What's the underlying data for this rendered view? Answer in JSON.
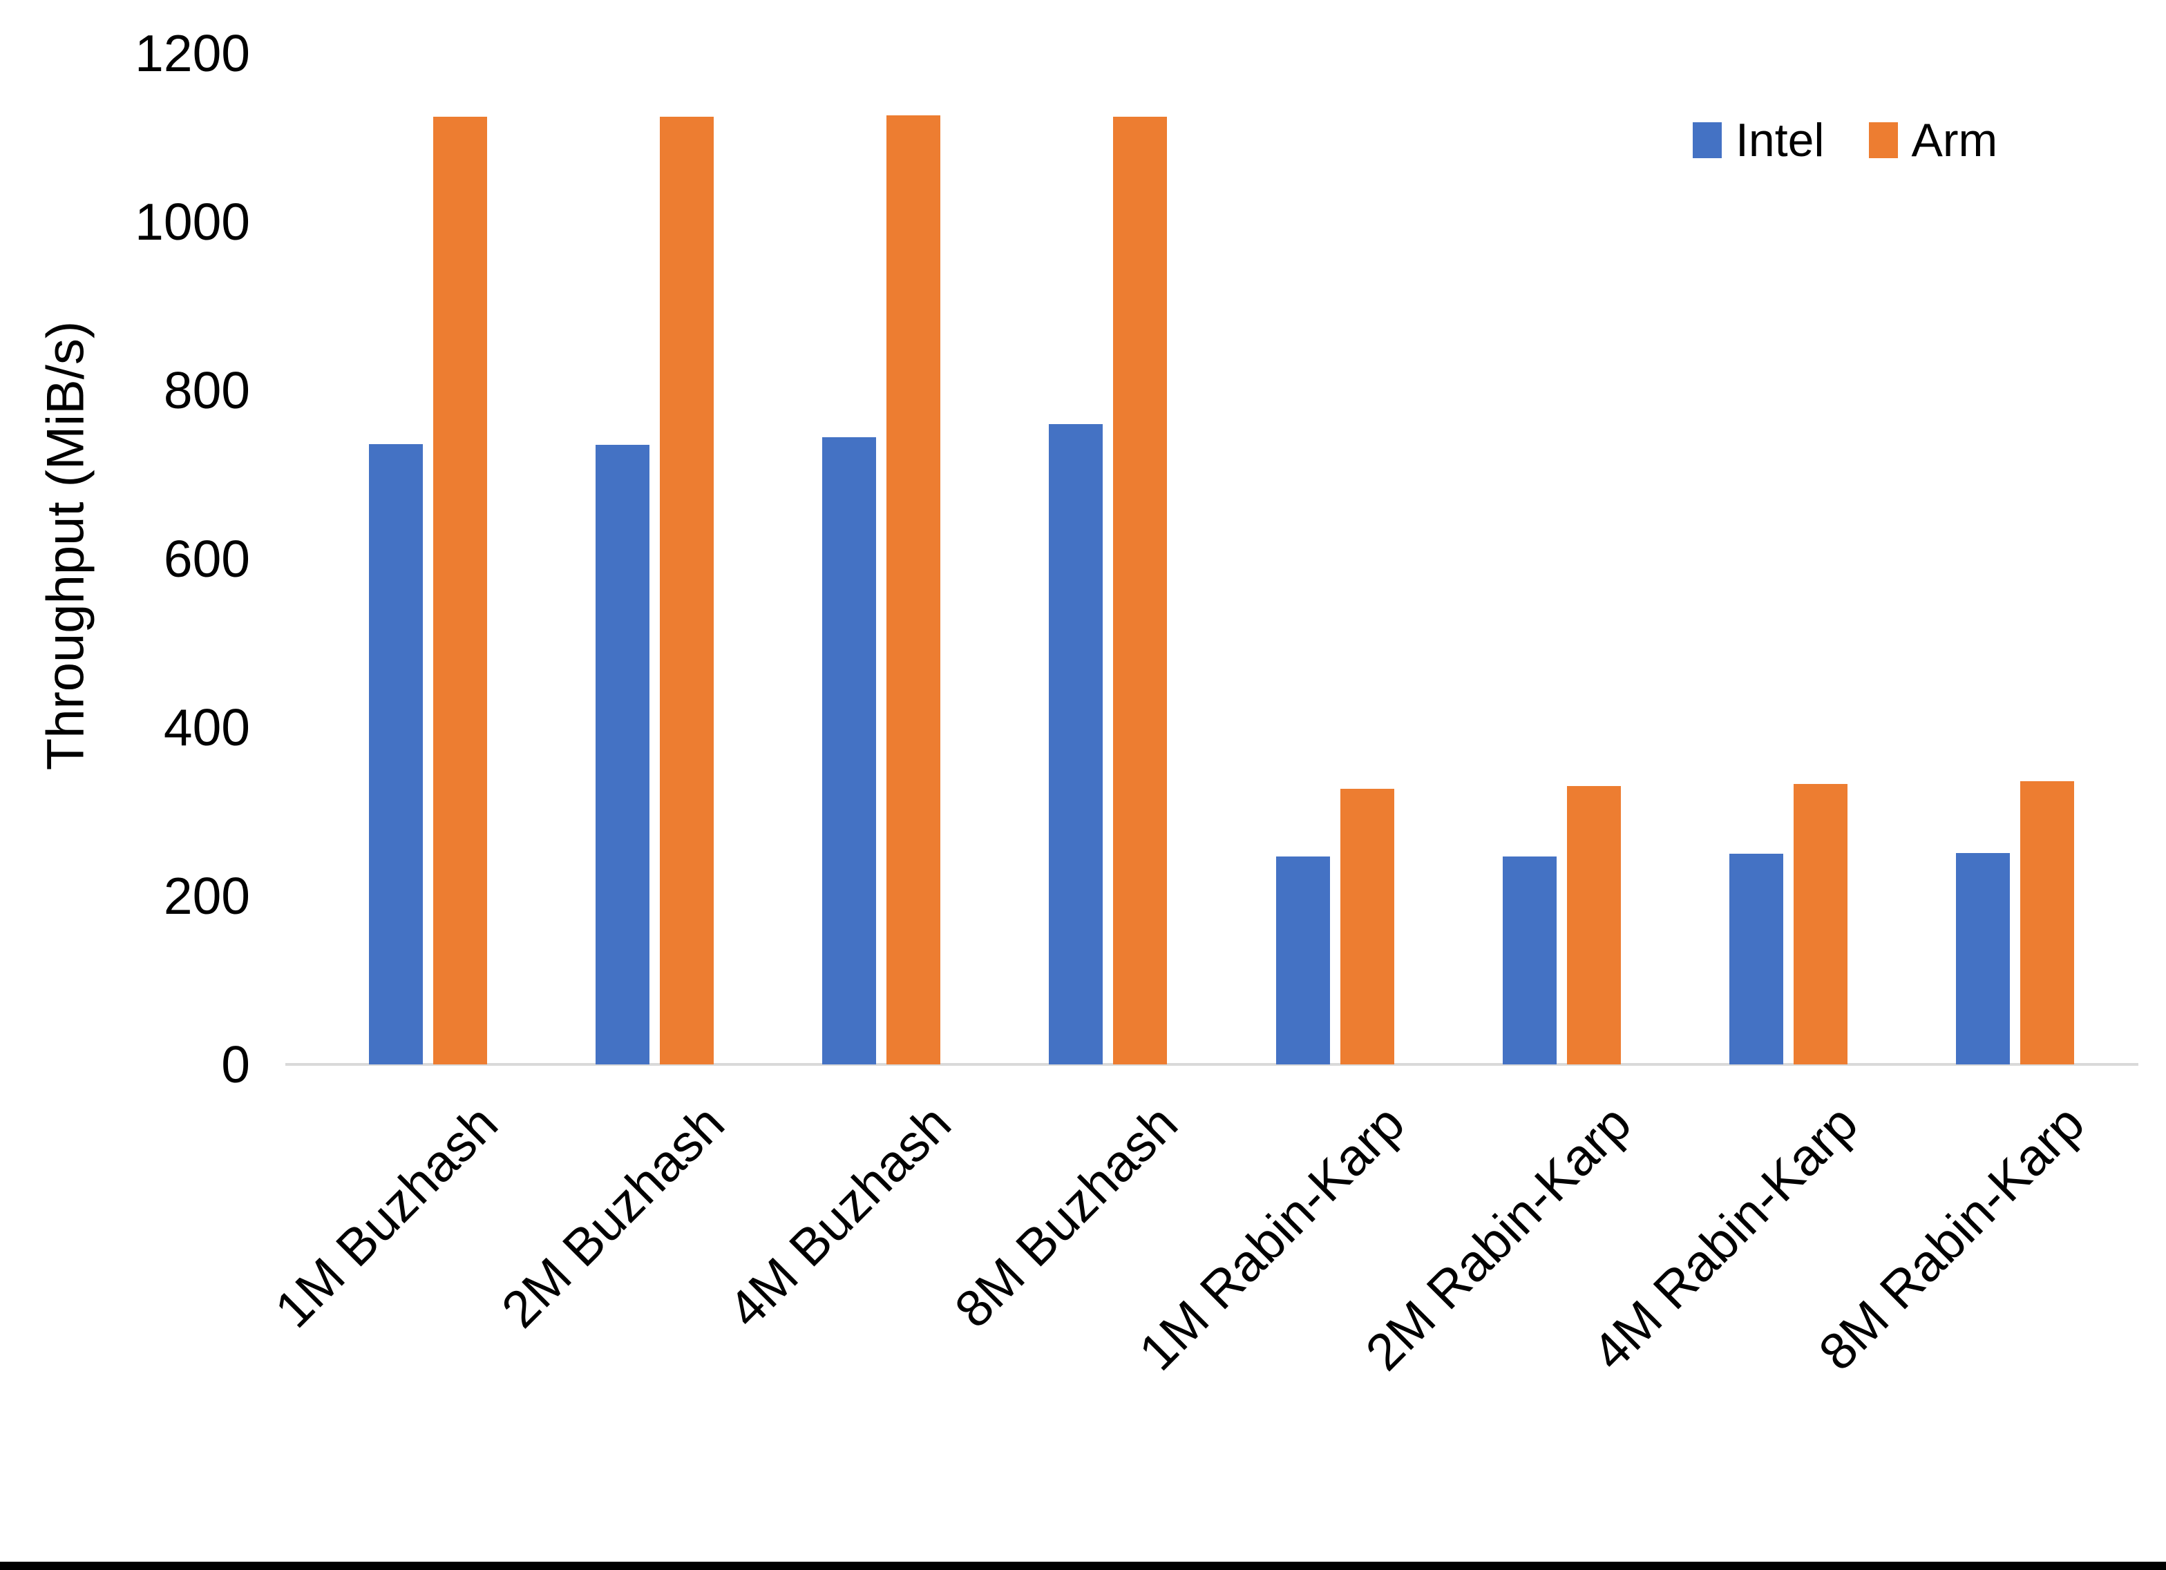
{
  "chart_data": {
    "type": "bar",
    "ylabel": "Throughput (MiB/s)",
    "xlabel": "",
    "ylim": [
      0,
      1200
    ],
    "yticks": [
      0,
      200,
      400,
      600,
      800,
      1000,
      1200
    ],
    "grid": false,
    "legend_position": "top-right",
    "categories": [
      "1M Buzhash",
      "2M Buzhash",
      "4M Buzhash",
      "8M Buzhash",
      "1M Rabin-Karp",
      "2M Rabin-Karp",
      "4M Rabin-Karp",
      "8M Rabin-Karp"
    ],
    "series": [
      {
        "name": "Intel",
        "color": "#4472C4",
        "values": [
          736,
          735,
          744,
          760,
          247,
          247,
          250,
          251
        ]
      },
      {
        "name": "Arm",
        "color": "#ED7D31",
        "values": [
          1125,
          1125,
          1126,
          1125,
          327,
          330,
          333,
          336
        ]
      }
    ]
  },
  "colors": {
    "axis_line": "#D9D9D9",
    "text": "#000000",
    "bottom_bar": "#000000"
  }
}
